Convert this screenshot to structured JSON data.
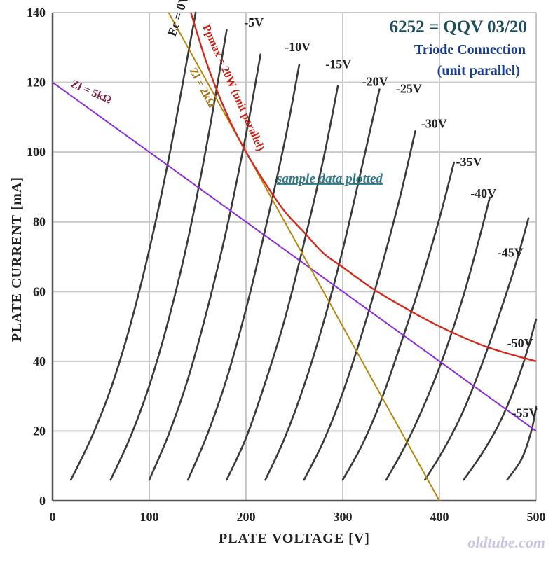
{
  "chart_data": {
    "type": "line",
    "title": "6252 = QQV 03/20",
    "subtitle_line1": "Triode Connection",
    "subtitle_line2": "(unit parallel)",
    "xlabel": "PLATE  VOLTAGE  [V]",
    "ylabel": "PLATE  CURRENT  [mA]",
    "xlim": [
      0,
      500
    ],
    "ylim": [
      0,
      140
    ],
    "x_ticks": [
      "0",
      "100",
      "200",
      "300",
      "400",
      "500"
    ],
    "y_ticks": [
      "0",
      "20",
      "40",
      "60",
      "80",
      "100",
      "120",
      "140"
    ],
    "grid": true,
    "colors": {
      "grid": "#c8c8c8",
      "curve": "#3a3a3a",
      "pmax": "#d42a1e",
      "load_5k": "#8a2be2",
      "load_2k": "#b8860b",
      "title": "#1f4e5a",
      "subtitle": "#1a3d8f",
      "sample_note": "#2a7a8c",
      "watermark": "#c9c4e6"
    },
    "series": [
      {
        "name": "Ec = 0V",
        "label_pos": [
          127,
          133
        ],
        "points": [
          [
            19,
            6
          ],
          [
            40,
            18
          ],
          [
            60,
            32
          ],
          [
            80,
            50
          ],
          [
            100,
            72
          ],
          [
            120,
            98
          ],
          [
            140,
            128
          ],
          [
            148,
            140
          ]
        ]
      },
      {
        "name": "-5V",
        "label_pos": [
          198,
          136
        ],
        "points": [
          [
            60,
            6
          ],
          [
            80,
            18
          ],
          [
            100,
            33
          ],
          [
            120,
            52
          ],
          [
            140,
            75
          ],
          [
            160,
            103
          ],
          [
            180,
            135
          ]
        ]
      },
      {
        "name": "-10V",
        "label_pos": [
          240,
          129
        ],
        "points": [
          [
            100,
            6
          ],
          [
            120,
            19
          ],
          [
            140,
            35
          ],
          [
            160,
            55
          ],
          [
            180,
            78
          ],
          [
            200,
            105
          ],
          [
            215,
            128
          ]
        ]
      },
      {
        "name": "-15V",
        "label_pos": [
          282,
          124
        ],
        "points": [
          [
            140,
            6
          ],
          [
            160,
            19
          ],
          [
            180,
            35
          ],
          [
            200,
            55
          ],
          [
            220,
            78
          ],
          [
            240,
            103
          ],
          [
            255,
            125
          ]
        ]
      },
      {
        "name": "-20V",
        "label_pos": [
          320,
          119
        ],
        "points": [
          [
            180,
            6
          ],
          [
            200,
            18
          ],
          [
            220,
            34
          ],
          [
            240,
            52
          ],
          [
            260,
            74
          ],
          [
            280,
            98
          ],
          [
            295,
            119
          ]
        ]
      },
      {
        "name": "-25V",
        "label_pos": [
          355,
          117
        ],
        "points": [
          [
            220,
            6
          ],
          [
            240,
            18
          ],
          [
            260,
            33
          ],
          [
            280,
            51
          ],
          [
            300,
            72
          ],
          [
            320,
            96
          ],
          [
            338,
            118
          ]
        ]
      },
      {
        "name": "-30V",
        "label_pos": [
          381,
          107
        ],
        "points": [
          [
            260,
            6
          ],
          [
            280,
            17
          ],
          [
            300,
            31
          ],
          [
            320,
            48
          ],
          [
            340,
            67
          ],
          [
            360,
            88
          ],
          [
            375,
            106
          ]
        ]
      },
      {
        "name": "-35V",
        "label_pos": [
          417,
          96
        ],
        "points": [
          [
            300,
            6
          ],
          [
            320,
            16
          ],
          [
            340,
            29
          ],
          [
            360,
            45
          ],
          [
            380,
            62
          ],
          [
            400,
            81
          ],
          [
            415,
            97
          ]
        ]
      },
      {
        "name": "-40V",
        "label_pos": [
          432,
          87
        ],
        "points": [
          [
            345,
            6
          ],
          [
            365,
            16
          ],
          [
            385,
            28
          ],
          [
            405,
            42
          ],
          [
            425,
            59
          ],
          [
            440,
            74
          ],
          [
            452,
            87
          ]
        ]
      },
      {
        "name": "-45V",
        "label_pos": [
          460,
          70
        ],
        "points": [
          [
            385,
            6
          ],
          [
            405,
            15
          ],
          [
            425,
            26
          ],
          [
            445,
            40
          ],
          [
            465,
            56
          ],
          [
            480,
            69
          ],
          [
            492,
            81
          ]
        ]
      },
      {
        "name": "-50V",
        "label_pos": [
          470,
          44
        ],
        "points": [
          [
            425,
            6
          ],
          [
            445,
            14
          ],
          [
            465,
            24
          ],
          [
            485,
            38
          ],
          [
            500,
            52
          ]
        ]
      },
      {
        "name": "-55V",
        "label_pos": [
          475,
          24
        ],
        "points": [
          [
            470,
            6
          ],
          [
            485,
            12
          ],
          [
            495,
            20
          ],
          [
            500,
            27
          ]
        ]
      }
    ],
    "pmax_curve": {
      "name": "Ppmax = 20W (unit parallel)",
      "points": [
        [
          143,
          140
        ],
        [
          160,
          125
        ],
        [
          180,
          111
        ],
        [
          200,
          100
        ],
        [
          220,
          91
        ],
        [
          240,
          83
        ],
        [
          260,
          77
        ],
        [
          280,
          71
        ],
        [
          300,
          67
        ],
        [
          330,
          61
        ],
        [
          360,
          56
        ],
        [
          400,
          50
        ],
        [
          450,
          44
        ],
        [
          500,
          40
        ]
      ]
    },
    "load_lines": [
      {
        "name": "Zl = 5kΩ",
        "points": [
          [
            0,
            120
          ],
          [
            500,
            20
          ]
        ]
      },
      {
        "name": "Zl = 2kΩ",
        "points": [
          [
            120,
            140
          ],
          [
            400,
            0
          ]
        ]
      }
    ],
    "annotations": {
      "sample_data": "sample data plotted",
      "watermark": "oldtube.com"
    }
  }
}
